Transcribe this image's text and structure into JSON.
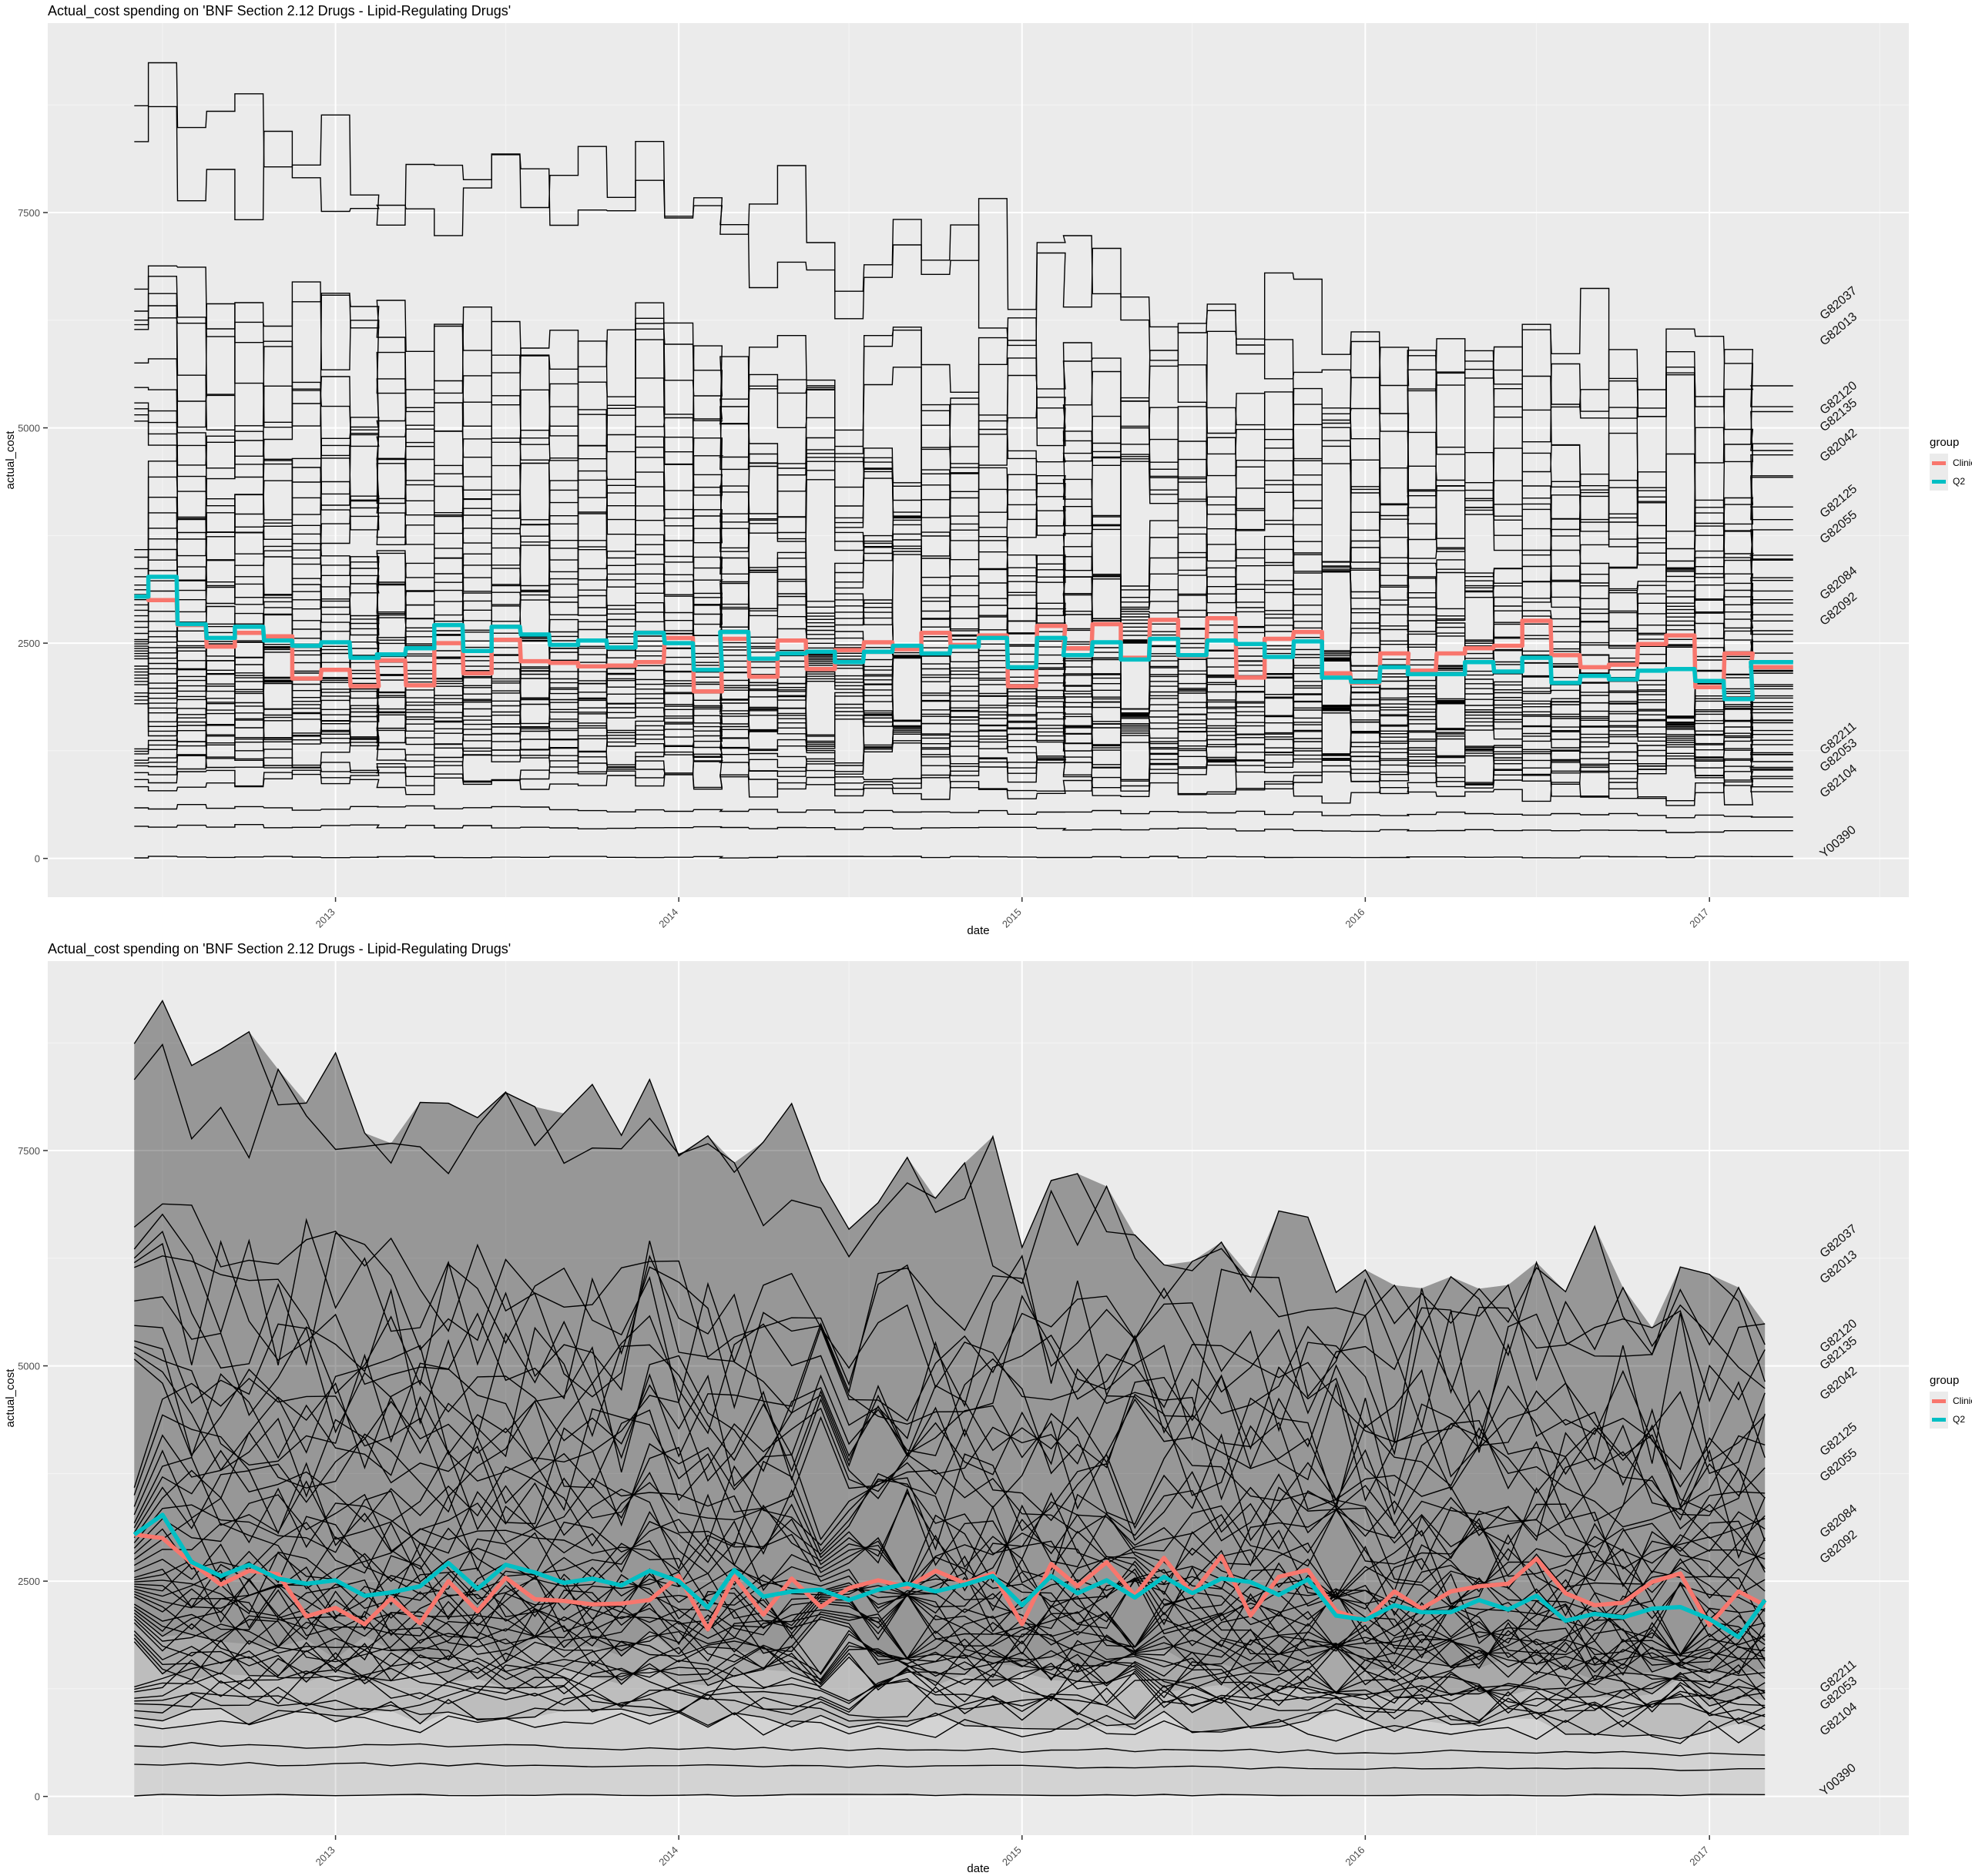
{
  "chart_data": [
    {
      "type": "line",
      "variant": "step",
      "title": "Actual_cost spending on 'BNF Section 2.12 Drugs - Lipid-Regulating Drugs'",
      "xlabel": "date",
      "ylabel": "actual_cost",
      "x_ticks": [
        "2013",
        "2014",
        "2015",
        "2016",
        "2017"
      ],
      "y_ticks": [
        "0",
        "2500",
        "5000",
        "7500"
      ],
      "xlim": [
        "2012-03-01",
        "2017-08-01"
      ],
      "ylim": [
        -450,
        9700
      ],
      "grid": true,
      "legend": {
        "title": "group",
        "position": "right",
        "entries": [
          "Clinic",
          "Q2"
        ]
      },
      "practice_labels": [
        "G82037",
        "G82013",
        "G82120",
        "G82135",
        "G82042",
        "G82125",
        "G82055",
        "G82084",
        "G82092",
        "G82211",
        "G82053",
        "G82104",
        "Y00390"
      ],
      "series": [
        {
          "name": "Clinic",
          "color": "#F8766D",
          "values": [
            3040,
            3000,
            2710,
            2460,
            2620,
            2580,
            2090,
            2190,
            2000,
            2300,
            2010,
            2500,
            2150,
            2540,
            2290,
            2270,
            2230,
            2240,
            2280,
            2560,
            1940,
            2550,
            2110,
            2530,
            2200,
            2420,
            2510,
            2430,
            2620,
            2480,
            2590,
            2000,
            2700,
            2440,
            2720,
            2330,
            2770,
            2350,
            2790,
            2100,
            2550,
            2630,
            2150,
            2040,
            2380,
            2180,
            2380,
            2440,
            2470,
            2760,
            2360,
            2220,
            2250,
            2490,
            2590,
            1990,
            2380,
            2220
          ]
        },
        {
          "name": "Q2",
          "color": "#00BFC4",
          "values": [
            3040,
            3270,
            2720,
            2560,
            2690,
            2530,
            2470,
            2510,
            2330,
            2370,
            2440,
            2710,
            2410,
            2690,
            2600,
            2480,
            2530,
            2450,
            2620,
            2500,
            2190,
            2630,
            2320,
            2380,
            2400,
            2280,
            2400,
            2470,
            2380,
            2460,
            2560,
            2220,
            2560,
            2360,
            2510,
            2310,
            2550,
            2360,
            2530,
            2490,
            2340,
            2520,
            2100,
            2050,
            2220,
            2140,
            2140,
            2280,
            2170,
            2330,
            2040,
            2120,
            2080,
            2180,
            2200,
            2060,
            1850,
            2280
          ]
        }
      ]
    },
    {
      "type": "line",
      "title": "Actual_cost spending on 'BNF Section 2.12 Drugs - Lipid-Regulating Drugs'",
      "xlabel": "date",
      "ylabel": "actual_cost",
      "x_ticks": [
        "2013",
        "2014",
        "2015",
        "2016",
        "2017"
      ],
      "y_ticks": [
        "0",
        "2500",
        "5000",
        "7500"
      ],
      "xlim": [
        "2012-03-01",
        "2017-08-01"
      ],
      "ylim": [
        -450,
        9700
      ],
      "grid": true,
      "ribbons": true,
      "legend": {
        "title": "group",
        "position": "right",
        "entries": [
          "Clinic",
          "Q2"
        ]
      },
      "practice_labels": [
        "G82037",
        "G82013",
        "G82120",
        "G82135",
        "G82042",
        "G82125",
        "G82055",
        "G82084",
        "G82092",
        "G82211",
        "G82053",
        "G82104",
        "Y00390"
      ],
      "series": [
        {
          "name": "Clinic",
          "color": "#F8766D",
          "values": [
            3040,
            3000,
            2710,
            2460,
            2620,
            2580,
            2090,
            2190,
            2000,
            2300,
            2010,
            2500,
            2150,
            2540,
            2290,
            2270,
            2230,
            2240,
            2280,
            2560,
            1940,
            2550,
            2110,
            2530,
            2200,
            2420,
            2510,
            2430,
            2620,
            2480,
            2590,
            2000,
            2700,
            2440,
            2720,
            2330,
            2770,
            2350,
            2790,
            2100,
            2550,
            2630,
            2150,
            2040,
            2380,
            2180,
            2380,
            2440,
            2470,
            2760,
            2360,
            2220,
            2250,
            2490,
            2590,
            1990,
            2380,
            2220
          ]
        },
        {
          "name": "Q2",
          "color": "#00BFC4",
          "values": [
            3040,
            3270,
            2720,
            2560,
            2690,
            2530,
            2470,
            2510,
            2330,
            2370,
            2440,
            2710,
            2410,
            2690,
            2600,
            2480,
            2530,
            2450,
            2620,
            2500,
            2190,
            2630,
            2320,
            2380,
            2400,
            2280,
            2400,
            2470,
            2380,
            2460,
            2560,
            2220,
            2560,
            2360,
            2510,
            2310,
            2550,
            2360,
            2530,
            2490,
            2340,
            2520,
            2100,
            2050,
            2220,
            2140,
            2140,
            2280,
            2170,
            2330,
            2040,
            2120,
            2080,
            2180,
            2200,
            2060,
            1850,
            2280
          ]
        }
      ]
    }
  ]
}
